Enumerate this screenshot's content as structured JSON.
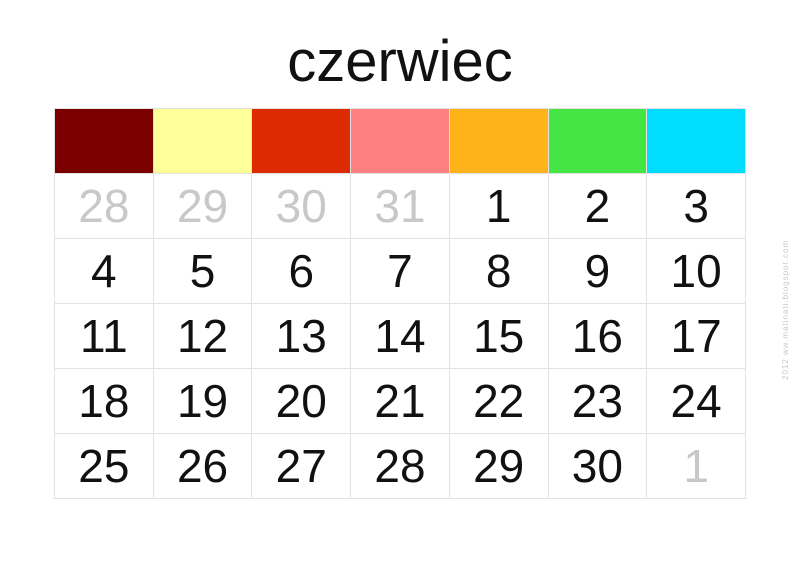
{
  "title": "czerwiec",
  "side_text": "2012   ww.matinati.blogspot.com",
  "colors": [
    "#7a0000",
    "#ffff99",
    "#dd2a00",
    "#ff8080",
    "#ffb31a",
    "#44e544",
    "#00ddff"
  ],
  "other_month_color": "#c8c8c8",
  "weeks": [
    [
      {
        "d": "28",
        "other": true
      },
      {
        "d": "29",
        "other": true
      },
      {
        "d": "30",
        "other": true
      },
      {
        "d": "31",
        "other": true
      },
      {
        "d": "1"
      },
      {
        "d": "2"
      },
      {
        "d": "3"
      }
    ],
    [
      {
        "d": "4"
      },
      {
        "d": "5"
      },
      {
        "d": "6"
      },
      {
        "d": "7"
      },
      {
        "d": "8"
      },
      {
        "d": "9"
      },
      {
        "d": "10"
      }
    ],
    [
      {
        "d": "11"
      },
      {
        "d": "12"
      },
      {
        "d": "13"
      },
      {
        "d": "14"
      },
      {
        "d": "15"
      },
      {
        "d": "16"
      },
      {
        "d": "17"
      }
    ],
    [
      {
        "d": "18"
      },
      {
        "d": "19"
      },
      {
        "d": "20"
      },
      {
        "d": "21"
      },
      {
        "d": "22"
      },
      {
        "d": "23"
      },
      {
        "d": "24"
      }
    ],
    [
      {
        "d": "25"
      },
      {
        "d": "26"
      },
      {
        "d": "27"
      },
      {
        "d": "28"
      },
      {
        "d": "29"
      },
      {
        "d": "30"
      },
      {
        "d": "1",
        "other": true
      }
    ]
  ]
}
